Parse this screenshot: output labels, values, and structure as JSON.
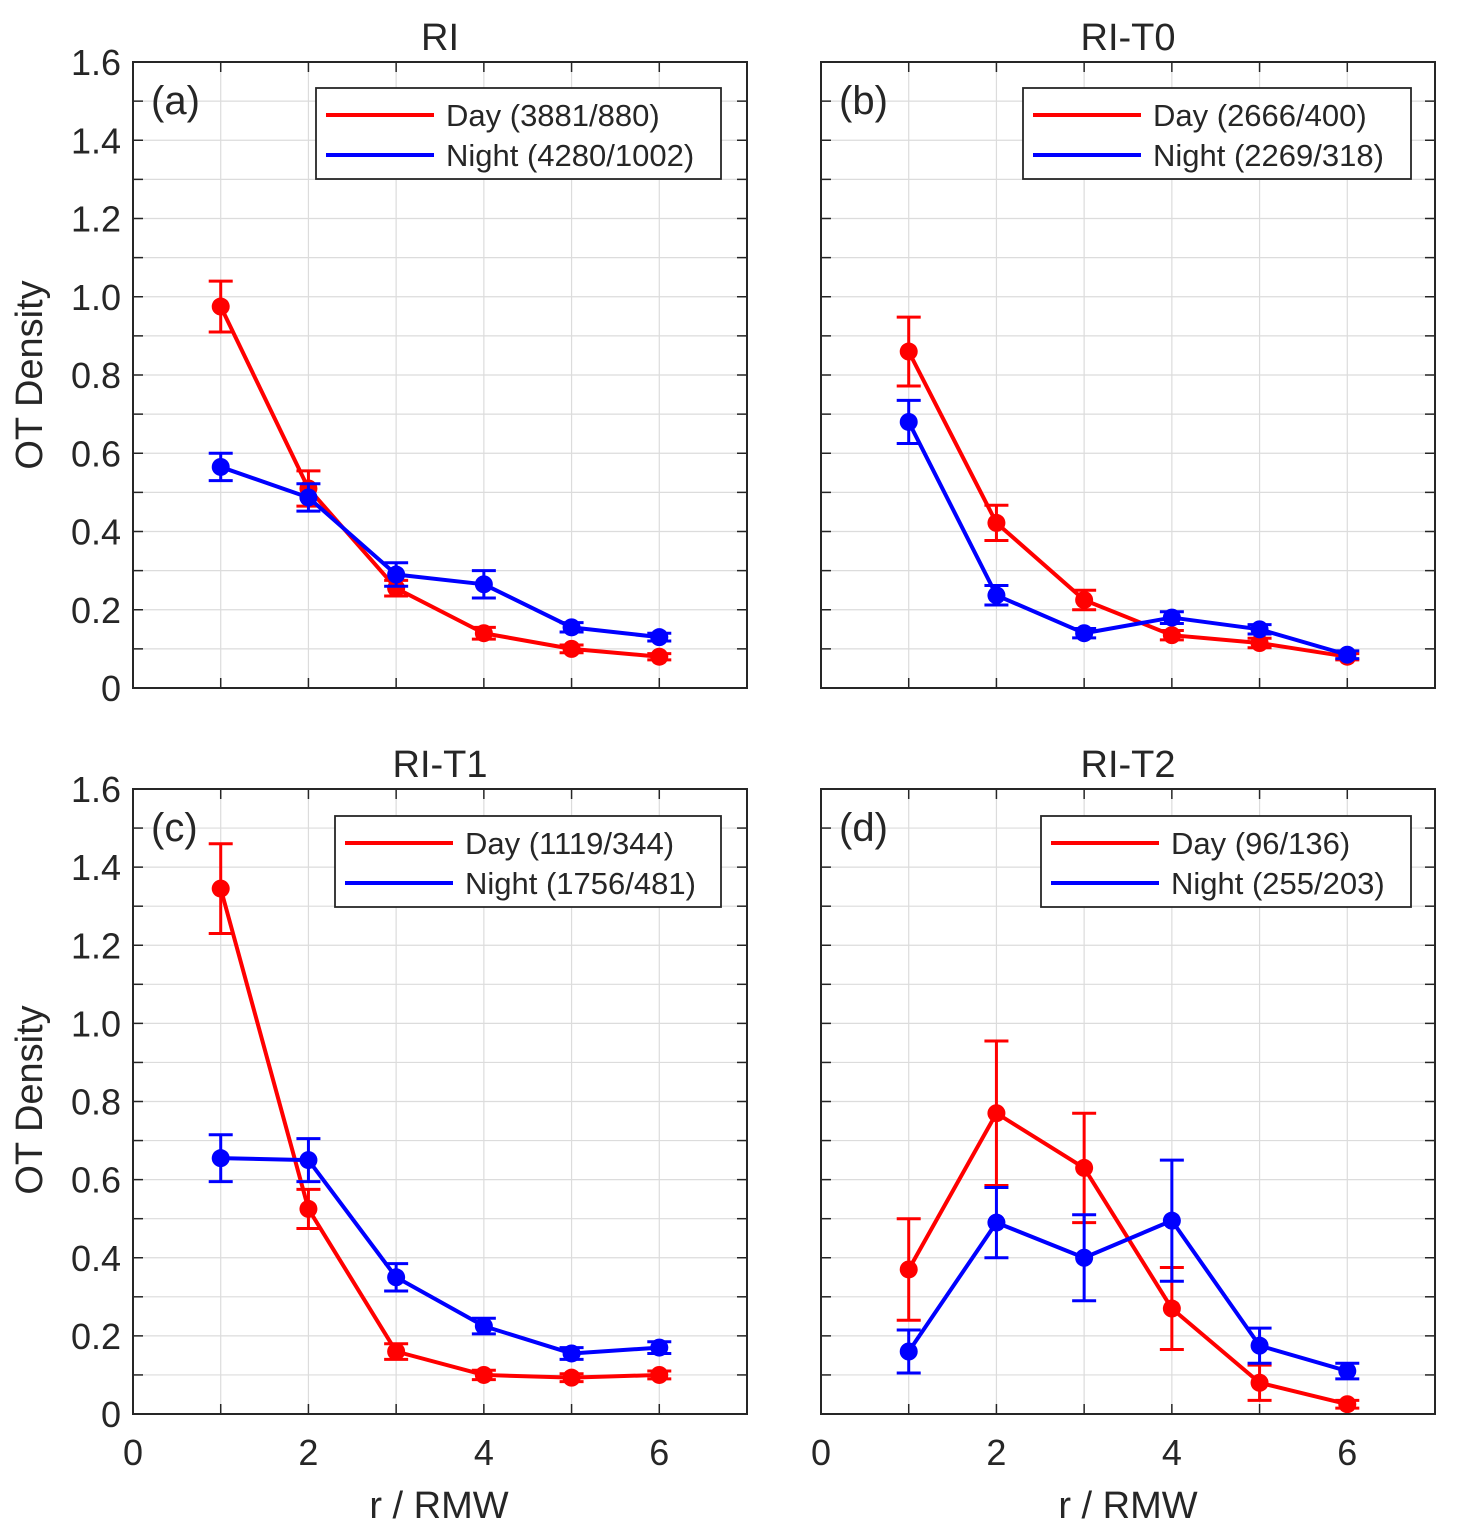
{
  "figure": {
    "ylabel_left": "OT Density",
    "xlabel_bottom": "r / RMW",
    "x_ticks": [
      0,
      2,
      4,
      6
    ],
    "y_ticks": [
      0,
      0.2,
      0.4,
      0.6,
      0.8,
      1.0,
      1.2,
      1.4,
      1.6
    ],
    "y_tick_labels": [
      "0",
      "0.2",
      "0.4",
      "0.6",
      "0.8",
      "1.0",
      "1.2",
      "1.4",
      "1.6"
    ],
    "colors": {
      "day": "#ff0000",
      "night": "#0000ff",
      "axis": "#262626",
      "grid": "#dcdcdc"
    }
  },
  "chart_data": [
    {
      "type": "line",
      "panel_label": "(a)",
      "title": "RI",
      "xlim": [
        0,
        7
      ],
      "ylim": [
        0,
        1.6
      ],
      "grid": true,
      "legend_position": "top-right",
      "x": [
        1,
        2,
        3,
        4,
        5,
        6
      ],
      "series": [
        {
          "name": "Day (3881/880)",
          "color": "#ff0000",
          "values": [
            0.975,
            0.51,
            0.255,
            0.14,
            0.1,
            0.08
          ],
          "error": [
            0.065,
            0.045,
            0.02,
            0.015,
            0.01,
            0.008
          ]
        },
        {
          "name": "Night (4280/1002)",
          "color": "#0000ff",
          "values": [
            0.565,
            0.487,
            0.29,
            0.265,
            0.155,
            0.13
          ],
          "error": [
            0.035,
            0.035,
            0.03,
            0.035,
            0.012,
            0.01
          ]
        }
      ]
    },
    {
      "type": "line",
      "panel_label": "(b)",
      "title": "RI-T0",
      "xlim": [
        0,
        7
      ],
      "ylim": [
        0,
        1.6
      ],
      "grid": true,
      "legend_position": "top-right",
      "x": [
        1,
        2,
        3,
        4,
        5,
        6
      ],
      "series": [
        {
          "name": "Day (2666/400)",
          "color": "#ff0000",
          "values": [
            0.86,
            0.422,
            0.225,
            0.135,
            0.115,
            0.08
          ],
          "error": [
            0.088,
            0.045,
            0.025,
            0.012,
            0.012,
            0.008
          ]
        },
        {
          "name": "Night (2269/318)",
          "color": "#0000ff",
          "values": [
            0.68,
            0.237,
            0.14,
            0.18,
            0.15,
            0.085
          ],
          "error": [
            0.055,
            0.025,
            0.012,
            0.015,
            0.012,
            0.01
          ]
        }
      ]
    },
    {
      "type": "line",
      "panel_label": "(c)",
      "title": "RI-T1",
      "xlim": [
        0,
        7
      ],
      "ylim": [
        0,
        1.6
      ],
      "grid": true,
      "legend_position": "top-right",
      "x": [
        1,
        2,
        3,
        4,
        5,
        6
      ],
      "series": [
        {
          "name": "Day (1119/344)",
          "color": "#ff0000",
          "values": [
            1.345,
            0.525,
            0.16,
            0.1,
            0.093,
            0.1
          ],
          "error": [
            0.115,
            0.05,
            0.02,
            0.012,
            0.01,
            0.01
          ]
        },
        {
          "name": "Night (1756/481)",
          "color": "#0000ff",
          "values": [
            0.655,
            0.65,
            0.35,
            0.225,
            0.155,
            0.17
          ],
          "error": [
            0.06,
            0.055,
            0.035,
            0.02,
            0.015,
            0.015
          ]
        }
      ]
    },
    {
      "type": "line",
      "panel_label": "(d)",
      "title": "RI-T2",
      "xlim": [
        0,
        7
      ],
      "ylim": [
        0,
        1.6
      ],
      "grid": true,
      "legend_position": "top-right",
      "x": [
        1,
        2,
        3,
        4,
        5,
        6
      ],
      "series": [
        {
          "name": "Day (96/136)",
          "color": "#ff0000",
          "values": [
            0.37,
            0.77,
            0.63,
            0.27,
            0.08,
            0.025
          ],
          "error": [
            0.13,
            0.185,
            0.14,
            0.105,
            0.045,
            0.01
          ]
        },
        {
          "name": "Night (255/203)",
          "color": "#0000ff",
          "values": [
            0.16,
            0.49,
            0.4,
            0.495,
            0.175,
            0.11
          ],
          "error": [
            0.055,
            0.09,
            0.11,
            0.155,
            0.045,
            0.02
          ]
        }
      ]
    }
  ]
}
